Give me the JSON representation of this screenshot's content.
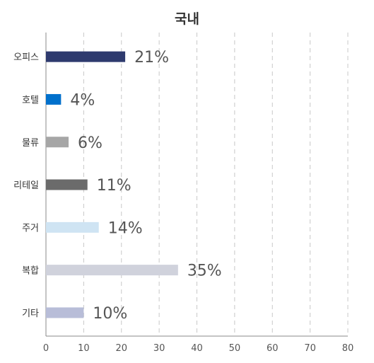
{
  "chart_data": {
    "type": "bar",
    "orientation": "horizontal",
    "title": "국내",
    "categories": [
      "오피스",
      "호텔",
      "물류",
      "리테일",
      "주거",
      "복합",
      "기타"
    ],
    "values": [
      21,
      4,
      6,
      11,
      14,
      35,
      10
    ],
    "value_labels": [
      "21%",
      "4%",
      "6%",
      "11%",
      "14%",
      "35%",
      "10%"
    ],
    "colors": [
      "#2e3a6e",
      "#0070cc",
      "#a6a6a6",
      "#6b6b6b",
      "#cfe4f3",
      "#d0d2dc",
      "#b8bdd8"
    ],
    "xlim": [
      0,
      80
    ],
    "xticks": [
      0,
      10,
      20,
      30,
      40,
      50,
      60,
      70,
      80
    ],
    "xlabel": "",
    "ylabel": "",
    "grid": "vertical dashed"
  }
}
